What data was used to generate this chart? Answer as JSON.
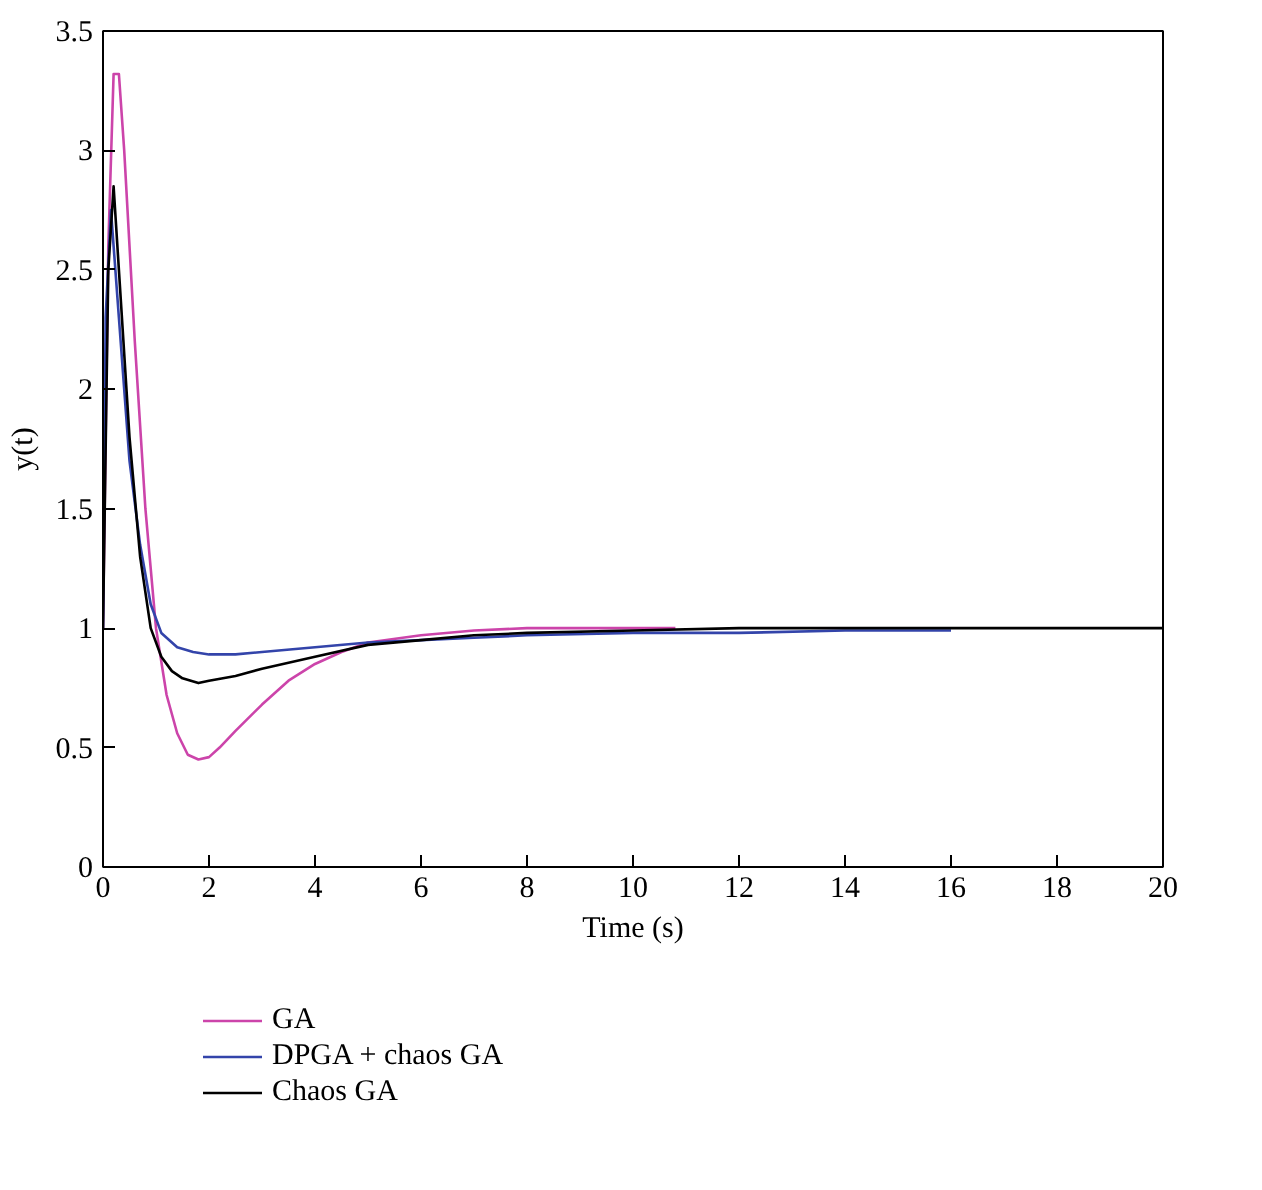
{
  "chart_data": {
    "type": "line",
    "xlabel": "Time (s)",
    "ylabel": "y(t)",
    "xlim": [
      0,
      20
    ],
    "ylim": [
      0,
      3.5
    ],
    "xticks": [
      0,
      2,
      4,
      6,
      8,
      10,
      12,
      14,
      16,
      18,
      20
    ],
    "yticks": [
      0,
      0.5,
      1,
      1.5,
      2,
      2.5,
      3,
      3.5
    ],
    "grid": false,
    "legend": "bottom",
    "series": [
      {
        "name": "GA",
        "color": "#cc44aa",
        "x": [
          0,
          0.1,
          0.2,
          0.3,
          0.4,
          0.6,
          0.8,
          1.0,
          1.2,
          1.4,
          1.6,
          1.8,
          2.0,
          2.2,
          2.5,
          3.0,
          3.5,
          4.0,
          4.5,
          5.0,
          6.0,
          7.0,
          8.0,
          9.0,
          10.0,
          10.8
        ],
        "values": [
          1,
          2.6,
          3.32,
          3.32,
          3.0,
          2.2,
          1.5,
          1.0,
          0.72,
          0.56,
          0.47,
          0.45,
          0.46,
          0.5,
          0.57,
          0.68,
          0.78,
          0.85,
          0.9,
          0.94,
          0.97,
          0.99,
          1.0,
          1.0,
          1.0,
          1.0
        ]
      },
      {
        "name": "DPGA + chaos GA",
        "color": "#3344aa",
        "x": [
          0,
          0.05,
          0.15,
          0.3,
          0.5,
          0.7,
          0.9,
          1.1,
          1.4,
          1.7,
          2.0,
          2.5,
          3.0,
          4.0,
          5.0,
          6.0,
          7.0,
          8.0,
          10.0,
          12.0,
          14.0,
          16.0
        ],
        "values": [
          1,
          2.3,
          2.75,
          2.3,
          1.7,
          1.35,
          1.1,
          0.98,
          0.92,
          0.9,
          0.89,
          0.89,
          0.9,
          0.92,
          0.94,
          0.95,
          0.96,
          0.97,
          0.98,
          0.98,
          0.99,
          0.99
        ]
      },
      {
        "name": "Chaos GA",
        "color": "#000000",
        "x": [
          0,
          0.1,
          0.2,
          0.3,
          0.5,
          0.7,
          0.9,
          1.1,
          1.3,
          1.5,
          1.8,
          2.0,
          2.5,
          3.0,
          4.0,
          5.0,
          6.0,
          7.0,
          8.0,
          10.0,
          12.0,
          14.0,
          16.0,
          18.0,
          20.0
        ],
        "values": [
          1,
          2.5,
          2.85,
          2.5,
          1.8,
          1.3,
          1.0,
          0.88,
          0.82,
          0.79,
          0.77,
          0.78,
          0.8,
          0.83,
          0.88,
          0.93,
          0.95,
          0.97,
          0.98,
          0.99,
          1.0,
          1.0,
          1.0,
          1.0,
          1.0
        ]
      }
    ]
  }
}
